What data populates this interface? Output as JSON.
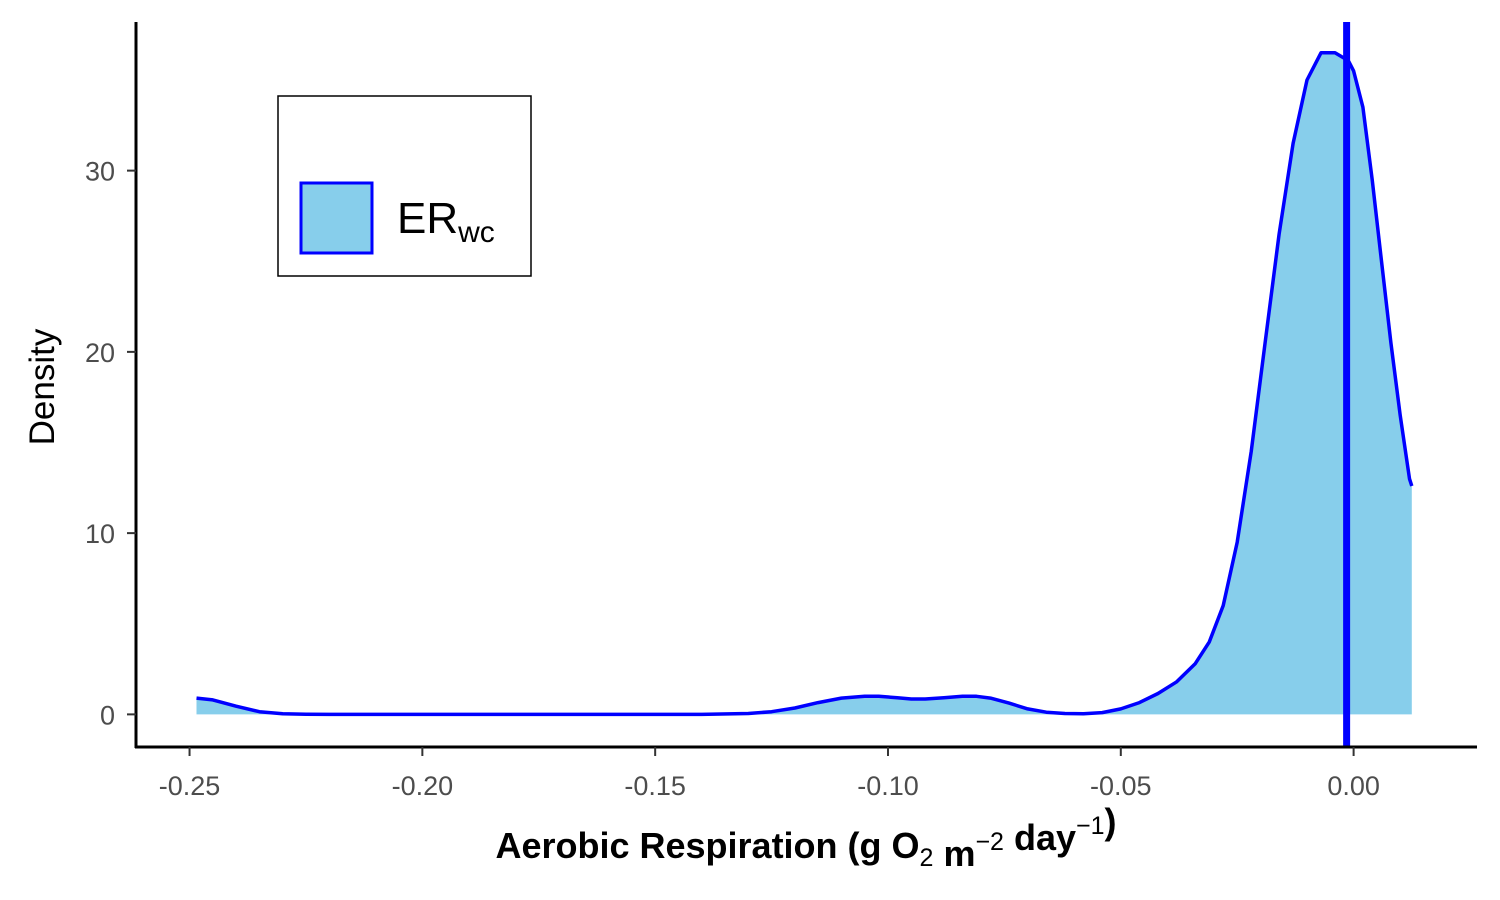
{
  "chart_data": {
    "type": "area",
    "ylabel": "Density",
    "xlabel": {
      "parts": [
        {
          "text": "Aerobic Respiration (g O",
          "style": "normal"
        },
        {
          "text": "2",
          "style": "sub"
        },
        {
          "text": " m",
          "style": "normal"
        },
        {
          "text": "−2",
          "style": "sup"
        },
        {
          "text": " day",
          "style": "normal"
        },
        {
          "text": "−1",
          "style": "sup"
        },
        {
          "text": ")",
          "style": "normal"
        }
      ]
    },
    "xlim": [
      -0.2615,
      0.0265
    ],
    "ylim": [
      -1.8,
      38.2
    ],
    "x_ticks": [
      -0.25,
      -0.2,
      -0.15,
      -0.1,
      -0.05,
      0.0
    ],
    "x_tick_labels": [
      "-0.25",
      "-0.20",
      "-0.15",
      "-0.10",
      "-0.05",
      "0.00"
    ],
    "y_ticks": [
      0,
      10,
      20,
      30
    ],
    "y_tick_labels": [
      "0",
      "10",
      "20",
      "30"
    ],
    "grid": false,
    "legend": {
      "placement": "top-left",
      "entries": [
        {
          "main": "ER",
          "sub": "wc",
          "fill": "#87CEEB",
          "stroke": "#0000FF"
        }
      ]
    },
    "series": [
      {
        "fill": "#87CEEB",
        "stroke": "#0000FF",
        "x": [
          -0.2485,
          -0.245,
          -0.24,
          -0.235,
          -0.23,
          -0.225,
          -0.22,
          -0.2,
          -0.18,
          -0.16,
          -0.14,
          -0.13,
          -0.125,
          -0.12,
          -0.115,
          -0.11,
          -0.105,
          -0.102,
          -0.098,
          -0.095,
          -0.092,
          -0.088,
          -0.084,
          -0.081,
          -0.078,
          -0.074,
          -0.07,
          -0.066,
          -0.062,
          -0.058,
          -0.054,
          -0.05,
          -0.046,
          -0.042,
          -0.038,
          -0.034,
          -0.031,
          -0.028,
          -0.025,
          -0.022,
          -0.019,
          -0.016,
          -0.013,
          -0.01,
          -0.007,
          -0.004,
          -0.002,
          -0.001,
          0.0,
          0.002,
          0.004,
          0.006,
          0.008,
          0.01,
          0.012,
          0.0125
        ],
        "y": [
          0.9,
          0.8,
          0.45,
          0.15,
          0.03,
          0.01,
          0.0,
          0.0,
          0.0,
          0.0,
          0.0,
          0.05,
          0.15,
          0.35,
          0.65,
          0.9,
          1.0,
          1.0,
          0.92,
          0.85,
          0.85,
          0.92,
          1.0,
          1.0,
          0.9,
          0.62,
          0.3,
          0.12,
          0.05,
          0.03,
          0.1,
          0.3,
          0.65,
          1.15,
          1.8,
          2.8,
          4.0,
          6.0,
          9.5,
          14.5,
          20.5,
          26.5,
          31.5,
          35.0,
          36.5,
          36.5,
          36.2,
          36.0,
          35.5,
          33.5,
          29.5,
          25.0,
          20.5,
          16.5,
          13.0,
          12.6
        ]
      }
    ],
    "vline": {
      "x": -0.0015,
      "color": "#0000FF"
    }
  }
}
